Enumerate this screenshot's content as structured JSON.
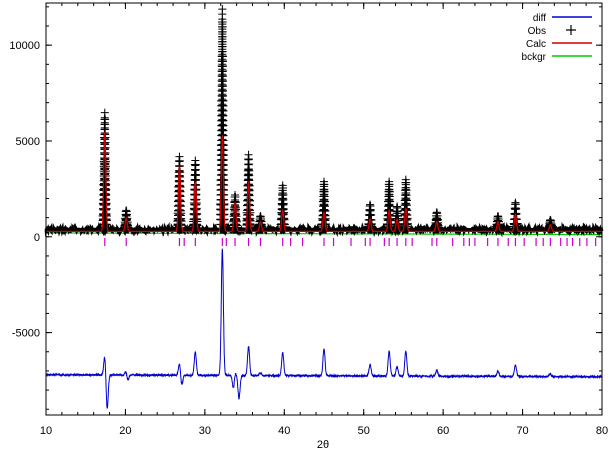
{
  "chart_data": {
    "type": "line",
    "title": "",
    "xlabel": "2θ",
    "ylabel": "",
    "xlim": [
      10,
      80
    ],
    "ylim": [
      -9300,
      12200
    ],
    "grid": false,
    "legend_position": "top-right",
    "x_ticks": [
      10,
      20,
      30,
      40,
      50,
      60,
      70,
      80
    ],
    "y_ticks": [
      0,
      5000,
      10000,
      -5000
    ],
    "series": [
      {
        "name": "diff",
        "kind": "line",
        "color": "#0000cc"
      },
      {
        "name": "Obs",
        "kind": "plus",
        "color": "#000000"
      },
      {
        "name": "Calc",
        "kind": "line",
        "color": "#cc0000"
      },
      {
        "name": "bckgr",
        "kind": "line",
        "color": "#00cc00"
      }
    ],
    "background_level": 200,
    "obs_baseline": 380,
    "diff_baseline": -7200,
    "peaks": [
      {
        "x": 17.4,
        "obs": 6100,
        "calc": 5200,
        "diff": 1000
      },
      {
        "x": 20.1,
        "obs": 1000,
        "calc": 700,
        "diff": 200
      },
      {
        "x": 26.8,
        "obs": 3800,
        "calc": 3400,
        "diff": 600
      },
      {
        "x": 28.8,
        "obs": 3600,
        "calc": 2600,
        "diff": 1200
      },
      {
        "x": 32.2,
        "obs": 11500,
        "calc": 5000,
        "diff": 6600
      },
      {
        "x": 33.8,
        "obs": 1800,
        "calc": 1500,
        "diff": 200
      },
      {
        "x": 35.5,
        "obs": 3900,
        "calc": 2600,
        "diff": 1500
      },
      {
        "x": 37.0,
        "obs": 700,
        "calc": 500,
        "diff": 150
      },
      {
        "x": 39.8,
        "obs": 2300,
        "calc": 1100,
        "diff": 1200
      },
      {
        "x": 45.0,
        "obs": 2500,
        "calc": 1000,
        "diff": 1400
      },
      {
        "x": 50.8,
        "obs": 1300,
        "calc": 650,
        "diff": 600
      },
      {
        "x": 53.2,
        "obs": 2500,
        "calc": 1100,
        "diff": 1300
      },
      {
        "x": 54.2,
        "obs": 1200,
        "calc": 650,
        "diff": 500
      },
      {
        "x": 55.3,
        "obs": 2600,
        "calc": 1200,
        "diff": 1300
      },
      {
        "x": 59.2,
        "obs": 900,
        "calc": 500,
        "diff": 300
      },
      {
        "x": 66.9,
        "obs": 700,
        "calc": 500,
        "diff": 250
      },
      {
        "x": 69.1,
        "obs": 1400,
        "calc": 900,
        "diff": 600
      },
      {
        "x": 73.5,
        "obs": 500,
        "calc": 350,
        "diff": 150
      }
    ],
    "dips": [
      {
        "x": 17.7,
        "diff": -1800
      },
      {
        "x": 20.3,
        "diff": -300
      },
      {
        "x": 27.1,
        "diff": -500
      },
      {
        "x": 33.6,
        "diff": -700
      },
      {
        "x": 34.3,
        "diff": -1200
      }
    ],
    "reflection_ticks": [
      17.4,
      20.1,
      26.8,
      27.4,
      28.8,
      32.2,
      32.7,
      33.8,
      35.5,
      37.0,
      39.8,
      40.8,
      42.3,
      45.0,
      46.2,
      48.4,
      50.2,
      50.8,
      52.6,
      53.2,
      54.2,
      55.3,
      56.1,
      58.6,
      59.2,
      61.2,
      62.6,
      63.3,
      64.0,
      65.6,
      66.9,
      68.2,
      69.1,
      70.2,
      71.7,
      72.6,
      73.5,
      74.8,
      75.6,
      76.3,
      77.2,
      78.1,
      79.2
    ]
  }
}
